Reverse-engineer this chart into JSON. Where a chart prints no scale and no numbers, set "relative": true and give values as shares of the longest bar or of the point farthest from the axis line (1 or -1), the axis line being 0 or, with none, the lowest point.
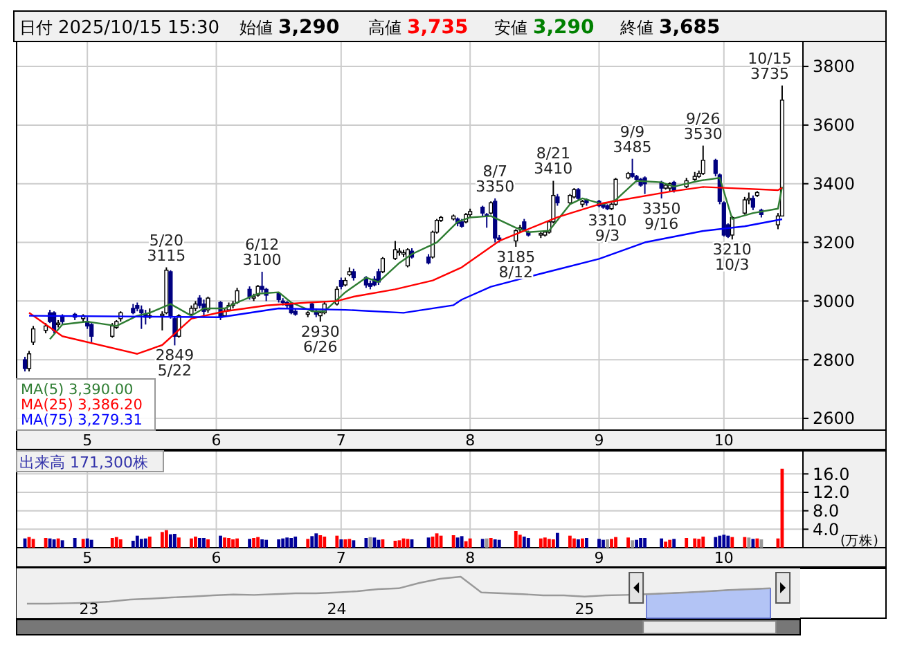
{
  "chart_data": [
    {
      "type": "other",
      "annotations": [
        "日付",
        "2025/10/15 15:30",
        "始値",
        "3,290",
        "高値",
        "3,735",
        "安値",
        "3,290",
        "終値",
        "3,685"
      ],
      "colors": [
        "#000000",
        "#000000",
        "#000000",
        "#000000",
        "#000000",
        "#ff0000",
        "#000000",
        "#008000",
        "#000000",
        "#000000"
      ]
    },
    {
      "type": "candlestick",
      "x": [
        "2025-04-16",
        "2025-04-17",
        "2025-04-18",
        "2025-04-21",
        "2025-04-22",
        "2025-04-23",
        "2025-04-24",
        "2025-04-25",
        "2025-04-28",
        "2025-04-30",
        "2025-05-01",
        "2025-05-02",
        "2025-05-07",
        "2025-05-08",
        "2025-05-09",
        "2025-05-12",
        "2025-05-13",
        "2025-05-14",
        "2025-05-15",
        "2025-05-16",
        "2025-05-19",
        "2025-05-20",
        "2025-05-21",
        "2025-05-22",
        "2025-05-23",
        "2025-05-26",
        "2025-05-27",
        "2025-05-28",
        "2025-05-29",
        "2025-05-30",
        "2025-06-02",
        "2025-06-03",
        "2025-06-04",
        "2025-06-05",
        "2025-06-06",
        "2025-06-09",
        "2025-06-10",
        "2025-06-11",
        "2025-06-12",
        "2025-06-13",
        "2025-06-16",
        "2025-06-17",
        "2025-06-18",
        "2025-06-19",
        "2025-06-20",
        "2025-06-23",
        "2025-06-24",
        "2025-06-25",
        "2025-06-26",
        "2025-06-27",
        "2025-06-30",
        "2025-07-01",
        "2025-07-02",
        "2025-07-03",
        "2025-07-04",
        "2025-07-07",
        "2025-07-08",
        "2025-07-09",
        "2025-07-10",
        "2025-07-11",
        "2025-07-14",
        "2025-07-15",
        "2025-07-16",
        "2025-07-17",
        "2025-07-18",
        "2025-07-22",
        "2025-07-23",
        "2025-07-24",
        "2025-07-25",
        "2025-07-28",
        "2025-07-29",
        "2025-07-30",
        "2025-07-31",
        "2025-08-01",
        "2025-08-04",
        "2025-08-05",
        "2025-08-06",
        "2025-08-07",
        "2025-08-08",
        "2025-08-12",
        "2025-08-13",
        "2025-08-14",
        "2025-08-15",
        "2025-08-18",
        "2025-08-19",
        "2025-08-20",
        "2025-08-21",
        "2025-08-22",
        "2025-08-25",
        "2025-08-26",
        "2025-08-27",
        "2025-08-28",
        "2025-08-29",
        "2025-09-01",
        "2025-09-02",
        "2025-09-03",
        "2025-09-04",
        "2025-09-05",
        "2025-09-08",
        "2025-09-09",
        "2025-09-10",
        "2025-09-11",
        "2025-09-12",
        "2025-09-16",
        "2025-09-17",
        "2025-09-18",
        "2025-09-19",
        "2025-09-22",
        "2025-09-24",
        "2025-09-25",
        "2025-09-26",
        "2025-09-29",
        "2025-09-30",
        "2025-10-01",
        "2025-10-02",
        "2025-10-03",
        "2025-10-06",
        "2025-10-07",
        "2025-10-08",
        "2025-10-09",
        "2025-10-10",
        "2025-10-14",
        "2025-10-15"
      ],
      "ohlc": [
        [
          2800,
          2810,
          2760,
          2770
        ],
        [
          2770,
          2830,
          2760,
          2820
        ],
        [
          2860,
          2915,
          2850,
          2905
        ],
        [
          2900,
          2925,
          2890,
          2915
        ],
        [
          2960,
          2970,
          2925,
          2930
        ],
        [
          2960,
          2965,
          2890,
          2900
        ],
        [
          2920,
          2935,
          2910,
          2925
        ],
        [
          2950,
          2955,
          2920,
          2930
        ],
        [
          2955,
          2960,
          2935,
          2945
        ],
        [
          2940,
          2955,
          2930,
          2950
        ],
        [
          2930,
          2945,
          2905,
          2915
        ],
        [
          2920,
          2925,
          2860,
          2880
        ],
        [
          2880,
          2925,
          2875,
          2915
        ],
        [
          2910,
          2935,
          2905,
          2930
        ],
        [
          2940,
          2965,
          2930,
          2960
        ],
        [
          2975,
          2990,
          2955,
          2960
        ],
        [
          2985,
          2995,
          2965,
          2975
        ],
        [
          2970,
          2985,
          2905,
          2960
        ],
        [
          2955,
          2970,
          2920,
          2945
        ],
        [
          2945,
          2975,
          2940,
          2950
        ],
        [
          2950,
          2965,
          2900,
          2955
        ],
        [
          2960,
          3115,
          2955,
          3105
        ],
        [
          3100,
          3105,
          2940,
          2950
        ],
        [
          2940,
          2945,
          2849,
          2880
        ],
        [
          2880,
          2955,
          2875,
          2950
        ],
        [
          2955,
          2985,
          2950,
          2975
        ],
        [
          2975,
          3000,
          2965,
          2990
        ],
        [
          3010,
          3020,
          2975,
          2985
        ],
        [
          2990,
          3005,
          2950,
          2965
        ],
        [
          2970,
          3015,
          2960,
          3010
        ],
        [
          2995,
          3000,
          2935,
          2945
        ],
        [
          2950,
          2975,
          2945,
          2965
        ],
        [
          2970,
          2995,
          2965,
          2985
        ],
        [
          2985,
          3000,
          2975,
          2990
        ],
        [
          2995,
          3045,
          2990,
          3035
        ],
        [
          3040,
          3050,
          3005,
          3015
        ],
        [
          3010,
          3025,
          3000,
          3015
        ],
        [
          3020,
          3055,
          3015,
          3050
        ],
        [
          3050,
          3100,
          3030,
          3040
        ],
        [
          3040,
          3045,
          3000,
          3020
        ],
        [
          3025,
          3030,
          2995,
          3005
        ],
        [
          3000,
          3010,
          2985,
          2995
        ],
        [
          2995,
          3000,
          2975,
          2985
        ],
        [
          2990,
          2995,
          2955,
          2960
        ],
        [
          2965,
          2975,
          2950,
          2955
        ],
        [
          2955,
          2965,
          2945,
          2960
        ],
        [
          2990,
          2995,
          2965,
          2970
        ],
        [
          2965,
          2975,
          2945,
          2955
        ],
        [
          2950,
          2965,
          2930,
          2960
        ],
        [
          2960,
          3000,
          2955,
          2990
        ],
        [
          2990,
          3050,
          2985,
          3040
        ],
        [
          3070,
          3080,
          3040,
          3050
        ],
        [
          3055,
          3080,
          3050,
          3070
        ],
        [
          3090,
          3115,
          3085,
          3100
        ],
        [
          3100,
          3110,
          3070,
          3080
        ],
        [
          3080,
          3085,
          3045,
          3055
        ],
        [
          3060,
          3070,
          3040,
          3050
        ],
        [
          3075,
          3085,
          3050,
          3055
        ],
        [
          3100,
          3110,
          3055,
          3065
        ],
        [
          3100,
          3150,
          3095,
          3145
        ],
        [
          3145,
          3205,
          3140,
          3175
        ],
        [
          3165,
          3180,
          3155,
          3170
        ],
        [
          3160,
          3175,
          3150,
          3165
        ],
        [
          3120,
          3180,
          3115,
          3175
        ],
        [
          3170,
          3180,
          3145,
          3150
        ],
        [
          3150,
          3160,
          3125,
          3130
        ],
        [
          3150,
          3240,
          3145,
          3235
        ],
        [
          3235,
          3280,
          3230,
          3275
        ],
        [
          3275,
          3290,
          3270,
          3285
        ],
        [
          3280,
          3295,
          3275,
          3290
        ],
        [
          3280,
          3285,
          3255,
          3265
        ],
        [
          3270,
          3280,
          3250,
          3255
        ],
        [
          3270,
          3300,
          3265,
          3295
        ],
        [
          3295,
          3315,
          3285,
          3305
        ],
        [
          3320,
          3325,
          3290,
          3300
        ],
        [
          3295,
          3300,
          3250,
          3290
        ],
        [
          3300,
          3340,
          3295,
          3335
        ],
        [
          3340,
          3350,
          3200,
          3215
        ],
        [
          3215,
          3225,
          3200,
          3210
        ],
        [
          3205,
          3245,
          3185,
          3240
        ],
        [
          3245,
          3260,
          3235,
          3250
        ],
        [
          3270,
          3280,
          3240,
          3245
        ],
        [
          3235,
          3240,
          3220,
          3225
        ],
        [
          3225,
          3235,
          3215,
          3230
        ],
        [
          3225,
          3240,
          3220,
          3235
        ],
        [
          3235,
          3275,
          3230,
          3270
        ],
        [
          3270,
          3410,
          3265,
          3360
        ],
        [
          3355,
          3365,
          3325,
          3335
        ],
        [
          3335,
          3365,
          3330,
          3360
        ],
        [
          3355,
          3385,
          3350,
          3380
        ],
        [
          3380,
          3385,
          3345,
          3350
        ],
        [
          3330,
          3345,
          3320,
          3340
        ],
        [
          3345,
          3350,
          3325,
          3335
        ],
        [
          3340,
          3345,
          3320,
          3325
        ],
        [
          3330,
          3335,
          3315,
          3320
        ],
        [
          3325,
          3330,
          3310,
          3315
        ],
        [
          3315,
          3335,
          3310,
          3330
        ],
        [
          3330,
          3420,
          3325,
          3415
        ],
        [
          3420,
          3440,
          3415,
          3435
        ],
        [
          3435,
          3485,
          3420,
          3425
        ],
        [
          3425,
          3430,
          3405,
          3415
        ],
        [
          3415,
          3420,
          3390,
          3395
        ],
        [
          3420,
          3425,
          3365,
          3400
        ],
        [
          3405,
          3410,
          3350,
          3385
        ],
        [
          3385,
          3400,
          3380,
          3395
        ],
        [
          3385,
          3405,
          3375,
          3400
        ],
        [
          3405,
          3410,
          3370,
          3375
        ],
        [
          3390,
          3420,
          3385,
          3410
        ],
        [
          3415,
          3440,
          3410,
          3425
        ],
        [
          3425,
          3445,
          3420,
          3435
        ],
        [
          3435,
          3530,
          3430,
          3480
        ],
        [
          3480,
          3485,
          3425,
          3435
        ],
        [
          3430,
          3435,
          3330,
          3340
        ],
        [
          3335,
          3340,
          3220,
          3225
        ],
        [
          3260,
          3265,
          3215,
          3220
        ],
        [
          3225,
          3290,
          3210,
          3285
        ],
        [
          3300,
          3355,
          3295,
          3345
        ],
        [
          3345,
          3370,
          3330,
          3350
        ],
        [
          3350,
          3360,
          3310,
          3320
        ],
        [
          3360,
          3375,
          3355,
          3370
        ],
        [
          3310,
          3315,
          3285,
          3295
        ],
        [
          3260,
          3300,
          3245,
          3290
        ],
        [
          3290,
          3735,
          3290,
          3685
        ]
      ],
      "ylim": [
        2560,
        3885
      ],
      "yticks": [
        2600,
        2800,
        3000,
        3200,
        3400,
        3600,
        3800
      ],
      "xlim": [
        "2025-04-14",
        "2025-10-20"
      ],
      "xticks": [
        {
          "value": "2025-05-01",
          "label": "5"
        },
        {
          "value": "2025-06-01",
          "label": "6"
        },
        {
          "value": "2025-07-01",
          "label": "7"
        },
        {
          "value": "2025-08-01",
          "label": "8"
        },
        {
          "value": "2025-09-01",
          "label": "9"
        },
        {
          "value": "2025-10-01",
          "label": "10"
        }
      ],
      "grid": true,
      "legend": "bottom left",
      "series": [
        {
          "name": "MA(5) 3,390.00",
          "type": "line",
          "color": "#2e7d32",
          "x": [
            "2025-04-22",
            "2025-04-25",
            "2025-05-01",
            "2025-05-08",
            "2025-05-13",
            "2025-05-16",
            "2025-05-21",
            "2025-05-26",
            "2025-05-29",
            "2025-06-03",
            "2025-06-06",
            "2025-06-11",
            "2025-06-16",
            "2025-06-19",
            "2025-06-24",
            "2025-06-27",
            "2025-07-02",
            "2025-07-07",
            "2025-07-10",
            "2025-07-15",
            "2025-07-18",
            "2025-07-24",
            "2025-07-29",
            "2025-08-01",
            "2025-08-06",
            "2025-08-12",
            "2025-08-15",
            "2025-08-20",
            "2025-08-25",
            "2025-08-28",
            "2025-09-02",
            "2025-09-05",
            "2025-09-10",
            "2025-09-16",
            "2025-09-19",
            "2025-09-25",
            "2025-09-30",
            "2025-10-03",
            "2025-10-08",
            "2025-10-14",
            "2025-10-15"
          ],
          "values": [
            2870,
            2920,
            2930,
            2915,
            2950,
            2960,
            2990,
            2950,
            2975,
            2975,
            2995,
            3025,
            3030,
            2995,
            2965,
            2965,
            3030,
            3080,
            3065,
            3130,
            3160,
            3200,
            3270,
            3285,
            3290,
            3250,
            3235,
            3240,
            3330,
            3350,
            3330,
            3345,
            3410,
            3405,
            3390,
            3410,
            3420,
            3280,
            3300,
            3315,
            3390
          ]
        },
        {
          "name": "MA(25) 3,386.20",
          "type": "line",
          "color": "#ff0000",
          "x": [
            "2025-04-17",
            "2025-04-25",
            "2025-05-13",
            "2025-05-19",
            "2025-05-26",
            "2025-06-03",
            "2025-06-13",
            "2025-06-23",
            "2025-06-30",
            "2025-07-04",
            "2025-07-14",
            "2025-07-23",
            "2025-07-30",
            "2025-08-08",
            "2025-08-22",
            "2025-09-02",
            "2025-09-18",
            "2025-09-26",
            "2025-10-03",
            "2025-10-14",
            "2025-10-15"
          ],
          "values": [
            2960,
            2880,
            2820,
            2850,
            2940,
            2965,
            2985,
            2995,
            3000,
            3015,
            3040,
            3070,
            3115,
            3205,
            3286,
            3334,
            3373,
            3389,
            3385,
            3378,
            3386
          ]
        },
        {
          "name": "MA(75) 3,279.31",
          "type": "line",
          "color": "#0000ff",
          "x": [
            "2025-04-17",
            "2025-06-02",
            "2025-06-16",
            "2025-07-02",
            "2025-07-16",
            "2025-07-28",
            "2025-07-30",
            "2025-08-06",
            "2025-08-19",
            "2025-09-01",
            "2025-09-12",
            "2025-09-26",
            "2025-10-06",
            "2025-10-15"
          ],
          "values": [
            2950,
            2945,
            2975,
            2970,
            2960,
            2986,
            3005,
            3049,
            3097,
            3144,
            3200,
            3239,
            3255,
            3279
          ]
        }
      ],
      "annotations": [
        {
          "text": "5/20 3115",
          "x": "2025-05-20",
          "y": 3115
        },
        {
          "text": "2849 5/22",
          "x": "2025-05-22",
          "y": 2849
        },
        {
          "text": "6/12 3100",
          "x": "2025-06-12",
          "y": 3100
        },
        {
          "text": "2930 6/26",
          "x": "2025-06-26",
          "y": 2930
        },
        {
          "text": "8/7 3350",
          "x": "2025-08-07",
          "y": 3350
        },
        {
          "text": "3185 8/12",
          "x": "2025-08-12",
          "y": 3185
        },
        {
          "text": "8/21 3410",
          "x": "2025-08-21",
          "y": 3410
        },
        {
          "text": "3310 9/3",
          "x": "2025-09-03",
          "y": 3310
        },
        {
          "text": "9/9 3485",
          "x": "2025-09-09",
          "y": 3485
        },
        {
          "text": "3350 9/16",
          "x": "2025-09-16",
          "y": 3350
        },
        {
          "text": "9/26 3530",
          "x": "2025-09-26",
          "y": 3530
        },
        {
          "text": "3210 10/3",
          "x": "2025-10-03",
          "y": 3210
        },
        {
          "text": "10/15 3735",
          "x": "2025-10-15",
          "y": 3735
        }
      ]
    },
    {
      "type": "bar",
      "title": "出来高 171,300株",
      "ylabel": "(万株)",
      "x": [
        "2025-04-16",
        "2025-04-17",
        "2025-04-18",
        "2025-04-21",
        "2025-04-22",
        "2025-04-23",
        "2025-04-24",
        "2025-04-25",
        "2025-04-28",
        "2025-04-30",
        "2025-05-01",
        "2025-05-02",
        "2025-05-07",
        "2025-05-08",
        "2025-05-09",
        "2025-05-12",
        "2025-05-13",
        "2025-05-14",
        "2025-05-15",
        "2025-05-16",
        "2025-05-19",
        "2025-05-20",
        "2025-05-21",
        "2025-05-22",
        "2025-05-23",
        "2025-05-26",
        "2025-05-27",
        "2025-05-28",
        "2025-05-29",
        "2025-05-30",
        "2025-06-02",
        "2025-06-03",
        "2025-06-04",
        "2025-06-05",
        "2025-06-06",
        "2025-06-09",
        "2025-06-10",
        "2025-06-11",
        "2025-06-12",
        "2025-06-13",
        "2025-06-16",
        "2025-06-17",
        "2025-06-18",
        "2025-06-19",
        "2025-06-20",
        "2025-06-23",
        "2025-06-24",
        "2025-06-25",
        "2025-06-26",
        "2025-06-27",
        "2025-06-30",
        "2025-07-01",
        "2025-07-02",
        "2025-07-03",
        "2025-07-04",
        "2025-07-07",
        "2025-07-08",
        "2025-07-09",
        "2025-07-10",
        "2025-07-11",
        "2025-07-14",
        "2025-07-15",
        "2025-07-16",
        "2025-07-17",
        "2025-07-18",
        "2025-07-22",
        "2025-07-23",
        "2025-07-24",
        "2025-07-25",
        "2025-07-28",
        "2025-07-29",
        "2025-07-30",
        "2025-07-31",
        "2025-08-01",
        "2025-08-04",
        "2025-08-05",
        "2025-08-06",
        "2025-08-07",
        "2025-08-08",
        "2025-08-12",
        "2025-08-13",
        "2025-08-14",
        "2025-08-15",
        "2025-08-18",
        "2025-08-19",
        "2025-08-20",
        "2025-08-21",
        "2025-08-22",
        "2025-08-25",
        "2025-08-26",
        "2025-08-27",
        "2025-08-28",
        "2025-08-29",
        "2025-09-01",
        "2025-09-02",
        "2025-09-03",
        "2025-09-04",
        "2025-09-05",
        "2025-09-08",
        "2025-09-09",
        "2025-09-10",
        "2025-09-11",
        "2025-09-12",
        "2025-09-16",
        "2025-09-17",
        "2025-09-18",
        "2025-09-19",
        "2025-09-22",
        "2025-09-24",
        "2025-09-25",
        "2025-09-26",
        "2025-09-29",
        "2025-09-30",
        "2025-10-01",
        "2025-10-02",
        "2025-10-03",
        "2025-10-06",
        "2025-10-07",
        "2025-10-08",
        "2025-10-09",
        "2025-10-10",
        "2025-10-14",
        "2025-10-15"
      ],
      "values": [
        2.0,
        2.3,
        1.9,
        2.1,
        2.0,
        1.8,
        2.0,
        1.6,
        2.1,
        1.9,
        2.0,
        1.7,
        2.1,
        2.3,
        1.8,
        1.5,
        2.6,
        1.9,
        2.0,
        2.4,
        3.4,
        3.8,
        2.9,
        3.0,
        2.2,
        2.0,
        2.4,
        2.1,
        2.1,
        1.8,
        2.6,
        2.2,
        2.1,
        1.8,
        2.0,
        1.9,
        2.1,
        2.3,
        1.8,
        1.7,
        1.8,
        2.0,
        2.2,
        2.1,
        2.4,
        1.9,
        2.5,
        3.1,
        2.7,
        2.4,
        2.6,
        1.8,
        1.8,
        1.9,
        1.6,
        2.1,
        2.3,
        2.2,
        1.7,
        1.8,
        1.5,
        1.6,
        2.0,
        1.9,
        1.8,
        2.2,
        2.4,
        3.1,
        2.6,
        2.7,
        2.2,
        2.5,
        1.4,
        2.0,
        1.9,
        2.0,
        2.1,
        1.8,
        1.7,
        3.6,
        2.8,
        2.4,
        2.1,
        2.0,
        2.2,
        1.9,
        1.8,
        3.2,
        2.6,
        2.0,
        1.8,
        2.0,
        2.1,
        1.9,
        1.7,
        1.8,
        1.9,
        2.3,
        2.2,
        1.6,
        1.7,
        2.1,
        2.1,
        2.0,
        1.3,
        1.7,
        1.9,
        2.1,
        2.0,
        1.9,
        2.4,
        2.3,
        2.6,
        2.8,
        2.6,
        2.3,
        2.3,
        2.2,
        1.9,
        2.0,
        1.8,
        2.0,
        17.13
      ],
      "colors": [
        "#000099",
        "#ff0000",
        "#ff0000",
        "#ff0000",
        "#000099",
        "#000099",
        "#ff0000",
        "#000099",
        "#000099",
        "#ff0000",
        "#000099",
        "#000099",
        "#ff0000",
        "#ff0000",
        "#ff0000",
        "#000099",
        "#000099",
        "#000099",
        "#000099",
        "#ff0000",
        "#ff0000",
        "#ff0000",
        "#000099",
        "#000099",
        "#ff0000",
        "#ff0000",
        "#ff0000",
        "#000099",
        "#000099",
        "#ff0000",
        "#000099",
        "#ff0000",
        "#ff0000",
        "#ff0000",
        "#ff0000",
        "#000099",
        "#ff0000",
        "#ff0000",
        "#000099",
        "#000099",
        "#000099",
        "#000099",
        "#000099",
        "#000099",
        "#000099",
        "#ff0000",
        "#000099",
        "#000099",
        "#ff0000",
        "#ff0000",
        "#ff0000",
        "#000099",
        "#ff0000",
        "#ff0000",
        "#000099",
        "#000099",
        "#999999",
        "#000099",
        "#000099",
        "#ff0000",
        "#ff0000",
        "#ff0000",
        "#ff0000",
        "#ff0000",
        "#000099",
        "#000099",
        "#ff0000",
        "#ff0000",
        "#ff0000",
        "#ff0000",
        "#000099",
        "#000099",
        "#ff0000",
        "#ff0000",
        "#000099",
        "#999999",
        "#ff0000",
        "#000099",
        "#000099",
        "#ff0000",
        "#ff0000",
        "#000099",
        "#000099",
        "#ff0000",
        "#ff0000",
        "#ff0000",
        "#ff0000",
        "#000099",
        "#ff0000",
        "#ff0000",
        "#000099",
        "#ff0000",
        "#000099",
        "#000099",
        "#000099",
        "#999999",
        "#ff0000",
        "#ff0000",
        "#ff0000",
        "#999999",
        "#000099",
        "#000099",
        "#000099",
        "#000099",
        "#ff0000",
        "#ff0000",
        "#000099",
        "#ff0000",
        "#ff0000",
        "#ff0000",
        "#ff0000",
        "#000099",
        "#000099",
        "#000099",
        "#000099",
        "#ff0000",
        "#ff0000",
        "#999999",
        "#000099",
        "#ff0000",
        "#999999",
        "#ff0000",
        "#ff0000"
      ],
      "ylim": [
        0,
        21
      ],
      "yticks": [
        {
          "value": 4,
          "label": "4.0"
        },
        {
          "value": 8,
          "label": "8.0"
        },
        {
          "value": 12,
          "label": "12.0"
        },
        {
          "value": 16,
          "label": "16.0"
        }
      ],
      "xlim": [
        "2025-04-14",
        "2025-10-20"
      ],
      "xticks": [
        {
          "value": "2025-05-01",
          "label": "5"
        },
        {
          "value": "2025-06-01",
          "label": "6"
        },
        {
          "value": "2025-07-01",
          "label": "7"
        },
        {
          "value": "2025-08-01",
          "label": "8"
        },
        {
          "value": "2025-09-01",
          "label": "9"
        },
        {
          "value": "2025-10-01",
          "label": "10"
        }
      ],
      "grid": true
    },
    {
      "type": "line",
      "relative": true,
      "tick_labels": "x",
      "categories": [
        null,
        null,
        null,
        "23",
        null,
        null,
        null,
        null,
        null,
        null,
        null,
        null,
        null,
        null,
        null,
        "24",
        null,
        null,
        null,
        null,
        null,
        null,
        null,
        null,
        null,
        null,
        null,
        "25",
        null,
        null,
        null,
        null,
        null,
        null,
        null,
        null,
        null
      ],
      "series": [
        {
          "type": "line",
          "color": "#999999",
          "values": [
            0.35,
            0.35,
            0.36,
            0.37,
            0.4,
            0.45,
            0.47,
            0.5,
            0.52,
            0.55,
            0.57,
            0.56,
            0.58,
            0.6,
            0.6,
            0.62,
            0.65,
            0.7,
            0.72,
            0.85,
            0.95,
            1.0,
            0.62,
            0.6,
            0.58,
            0.55,
            0.55,
            0.52,
            0.55,
            0.56,
            0.58,
            0.6,
            0.62,
            0.65,
            0.68,
            0.7,
            0.72
          ]
        },
        {
          "type": "area",
          "color": "#b3c4f5",
          "values": [
            null,
            null,
            null,
            null,
            null,
            null,
            null,
            null,
            null,
            null,
            null,
            null,
            null,
            null,
            null,
            null,
            null,
            null,
            null,
            null,
            null,
            null,
            null,
            null,
            null,
            null,
            null,
            null,
            null,
            null,
            0.58,
            0.6,
            0.62,
            0.65,
            0.68,
            0.7,
            0.72
          ]
        }
      ]
    }
  ]
}
